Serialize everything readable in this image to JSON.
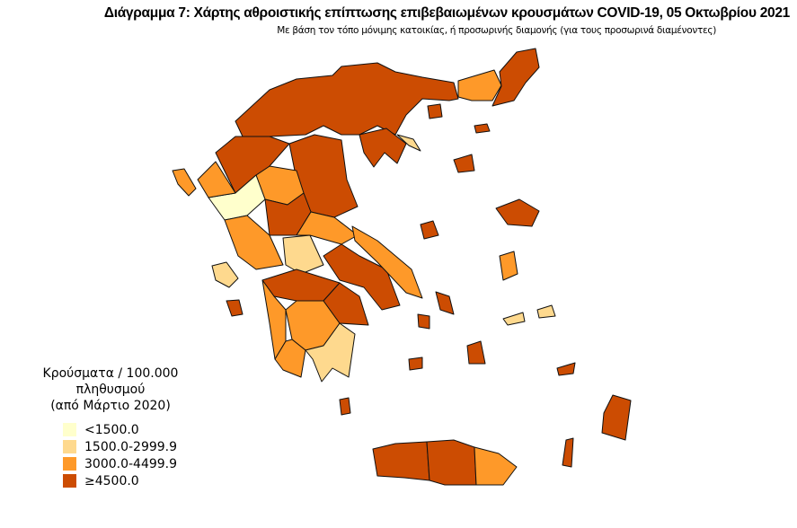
{
  "title": "Διάγραμμα 7: Χάρτης αθροιστικής επίπτωσης επιβεβαιωμένων κρουσμάτων COVID-19, 05 Οκτωβρίου 2021",
  "subtitle": "Με βάση τον τόπο μόνιμης κατοικίας, ή προσωρινής διαμονής (για τους προσωρινά διαμένοντες)",
  "legend": {
    "title_line1": "Κρούσματα / 100.000 πληθυσμού",
    "title_line2": "(από Μάρτιο 2020)",
    "items": [
      {
        "label": "<1500.0",
        "color": "#ffffcc"
      },
      {
        "label": "1500.0-2999.9",
        "color": "#fed98e"
      },
      {
        "label": "3000.0-4499.9",
        "color": "#fe9929"
      },
      {
        "label": "≥4500.0",
        "color": "#cc4c02"
      }
    ]
  }
}
